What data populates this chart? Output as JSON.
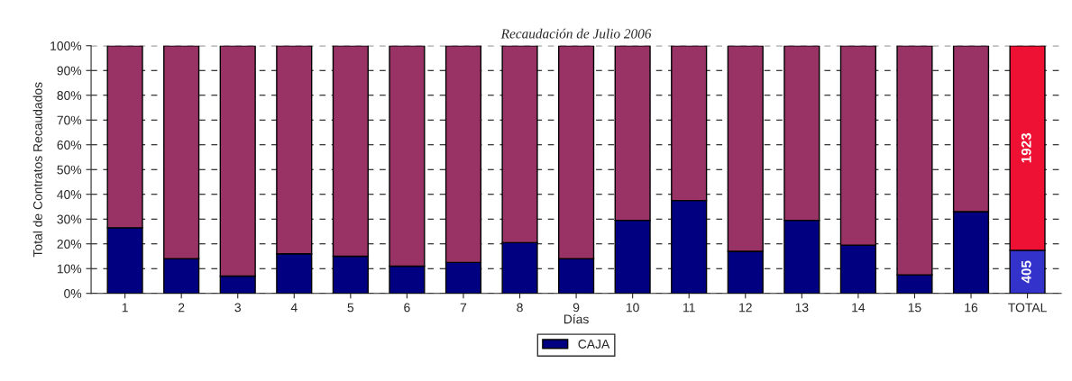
{
  "chart_data": {
    "type": "bar",
    "stacked": true,
    "title": "Recaudación de Julio 2006",
    "xlabel": "Días",
    "ylabel": "Total de Contratos Recaudados",
    "categories": [
      "1",
      "2",
      "3",
      "4",
      "5",
      "6",
      "7",
      "8",
      "9",
      "10",
      "11",
      "12",
      "13",
      "14",
      "15",
      "16",
      "TOTAL"
    ],
    "series": [
      {
        "name": "CAJA",
        "color": "#000080",
        "colors": [
          "#000080",
          "#000080",
          "#000080",
          "#000080",
          "#000080",
          "#000080",
          "#000080",
          "#000080",
          "#000080",
          "#000080",
          "#000080",
          "#000080",
          "#000080",
          "#000080",
          "#000080",
          "#000080",
          "#3333cc"
        ],
        "values": [
          26.5,
          14,
          7,
          16,
          15,
          11,
          12.5,
          20.5,
          14,
          29.5,
          37.5,
          17,
          29.5,
          19.5,
          7.5,
          33,
          17.4
        ]
      },
      {
        "color": "#993366",
        "colors": [
          "#993366",
          "#993366",
          "#993366",
          "#993366",
          "#993366",
          "#993366",
          "#993366",
          "#993366",
          "#993366",
          "#993366",
          "#993366",
          "#993366",
          "#993366",
          "#993366",
          "#993366",
          "#993366",
          "#ee1133"
        ],
        "values": [
          73.5,
          86,
          93,
          84,
          85,
          89,
          87.5,
          79.5,
          86,
          70.5,
          62.5,
          83,
          70.5,
          80.5,
          92.5,
          67,
          82.6
        ]
      }
    ],
    "annotations": [
      "405",
      "1923"
    ],
    "ylim": [
      0,
      100
    ],
    "yticks": [
      {
        "value": 0,
        "label": "0%"
      },
      {
        "value": 10,
        "label": "10%"
      },
      {
        "value": 20,
        "label": "20%"
      },
      {
        "value": 30,
        "label": "30%"
      },
      {
        "value": 40,
        "label": "40%"
      },
      {
        "value": 50,
        "label": "50%"
      },
      {
        "value": 60,
        "label": "60%"
      },
      {
        "value": 70,
        "label": "70%"
      },
      {
        "value": 80,
        "label": "80%"
      },
      {
        "value": 90,
        "label": "90%"
      },
      {
        "value": 100,
        "label": "100%"
      }
    ],
    "grid": "y",
    "line_style": "dashed",
    "legend": "bottom"
  }
}
